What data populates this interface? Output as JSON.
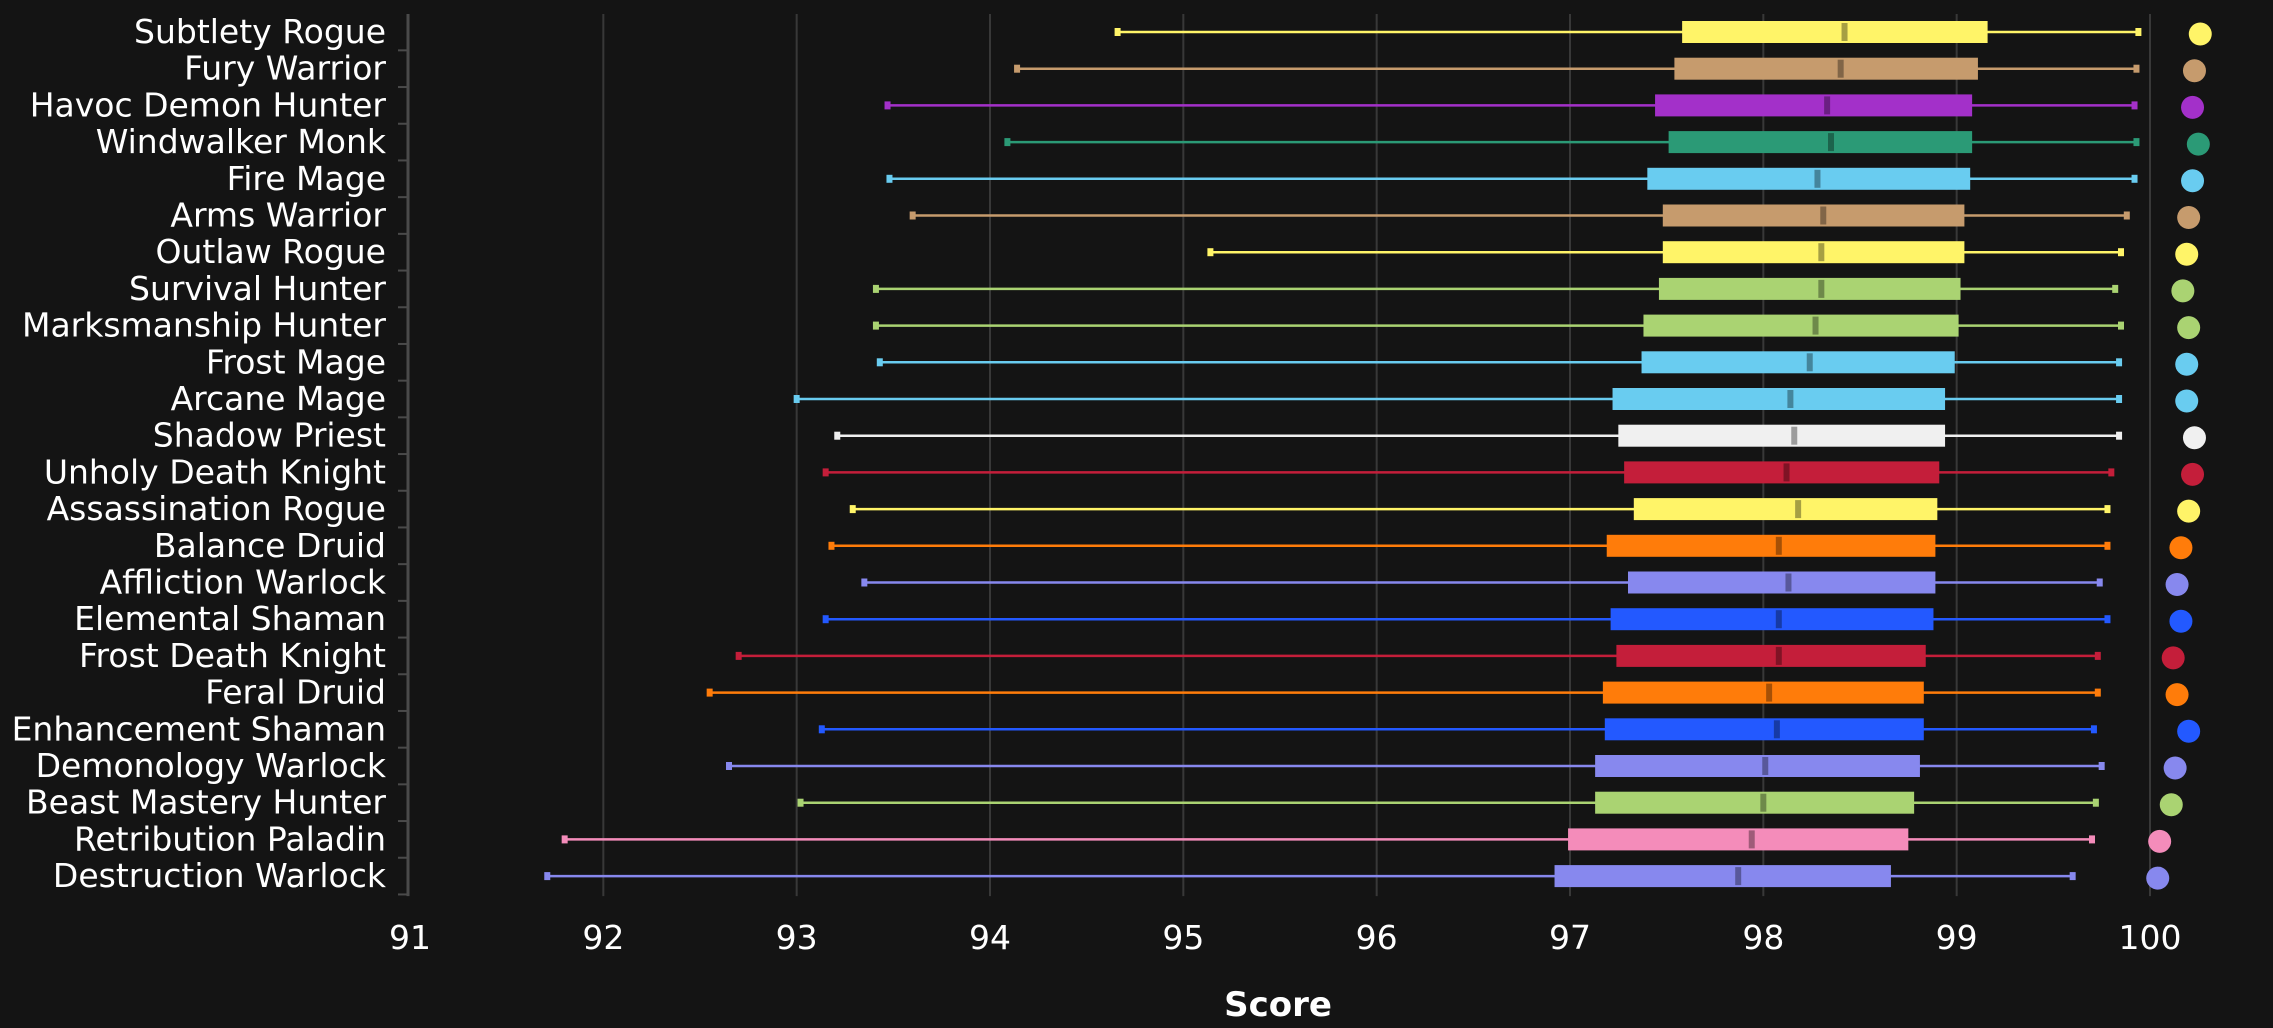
{
  "chart_data": {
    "type": "boxplot",
    "orientation": "horizontal",
    "title": "",
    "xlabel": "Score",
    "ylabel": "",
    "xlim": [
      91,
      100
    ],
    "x_ticks": [
      "91",
      "92",
      "93",
      "94",
      "95",
      "96",
      "97",
      "98",
      "99",
      "100"
    ],
    "grid": "vertical",
    "legend": "none",
    "series": [
      {
        "category": "Subtlety Rogue",
        "color": "#fff468",
        "min": 94.66,
        "q1": 97.58,
        "median": 98.42,
        "q3": 99.16,
        "max": 99.94,
        "point": 100.26
      },
      {
        "category": "Fury Warrior",
        "color": "#c69b6d",
        "min": 94.14,
        "q1": 97.54,
        "median": 98.4,
        "q3": 99.11,
        "max": 99.93,
        "point": 100.23
      },
      {
        "category": "Havoc Demon Hunter",
        "color": "#a330c9",
        "min": 93.47,
        "q1": 97.44,
        "median": 98.33,
        "q3": 99.08,
        "max": 99.92,
        "point": 100.22
      },
      {
        "category": "Windwalker Monk",
        "color": "#2b9a76",
        "min": 94.09,
        "q1": 97.51,
        "median": 98.35,
        "q3": 99.08,
        "max": 99.93,
        "point": 100.25
      },
      {
        "category": "Fire Mage",
        "color": "#69ccf0",
        "min": 93.48,
        "q1": 97.4,
        "median": 98.28,
        "q3": 99.07,
        "max": 99.92,
        "point": 100.22
      },
      {
        "category": "Arms Warrior",
        "color": "#c69b6d",
        "min": 93.6,
        "q1": 97.48,
        "median": 98.31,
        "q3": 99.04,
        "max": 99.88,
        "point": 100.2
      },
      {
        "category": "Outlaw Rogue",
        "color": "#fff468",
        "min": 95.14,
        "q1": 97.48,
        "median": 98.3,
        "q3": 99.04,
        "max": 99.85,
        "point": 100.19
      },
      {
        "category": "Survival Hunter",
        "color": "#aad372",
        "min": 93.41,
        "q1": 97.46,
        "median": 98.3,
        "q3": 99.02,
        "max": 99.82,
        "point": 100.17
      },
      {
        "category": "Marksmanship Hunter",
        "color": "#aad372",
        "min": 93.41,
        "q1": 97.38,
        "median": 98.27,
        "q3": 99.01,
        "max": 99.85,
        "point": 100.2
      },
      {
        "category": "Frost Mage",
        "color": "#69ccf0",
        "min": 93.43,
        "q1": 97.37,
        "median": 98.24,
        "q3": 98.99,
        "max": 99.84,
        "point": 100.19
      },
      {
        "category": "Arcane Mage",
        "color": "#69ccf0",
        "min": 93.0,
        "q1": 97.22,
        "median": 98.14,
        "q3": 98.94,
        "max": 99.84,
        "point": 100.19
      },
      {
        "category": "Shadow Priest",
        "color": "#f0f0f0",
        "min": 93.21,
        "q1": 97.25,
        "median": 98.16,
        "q3": 98.94,
        "max": 99.84,
        "point": 100.23
      },
      {
        "category": "Unholy Death Knight",
        "color": "#c41e3a",
        "min": 93.15,
        "q1": 97.28,
        "median": 98.12,
        "q3": 98.91,
        "max": 99.8,
        "point": 100.22
      },
      {
        "category": "Assassination Rogue",
        "color": "#fff468",
        "min": 93.29,
        "q1": 97.33,
        "median": 98.18,
        "q3": 98.9,
        "max": 99.78,
        "point": 100.2
      },
      {
        "category": "Balance Druid",
        "color": "#ff7c0a",
        "min": 93.18,
        "q1": 97.19,
        "median": 98.08,
        "q3": 98.89,
        "max": 99.78,
        "point": 100.16
      },
      {
        "category": "Affliction Warlock",
        "color": "#8788ee",
        "min": 93.35,
        "q1": 97.3,
        "median": 98.13,
        "q3": 98.89,
        "max": 99.74,
        "point": 100.14
      },
      {
        "category": "Elemental Shaman",
        "color": "#2359ff",
        "min": 93.15,
        "q1": 97.21,
        "median": 98.08,
        "q3": 98.88,
        "max": 99.78,
        "point": 100.16
      },
      {
        "category": "Frost Death Knight",
        "color": "#c41e3a",
        "min": 92.7,
        "q1": 97.24,
        "median": 98.08,
        "q3": 98.84,
        "max": 99.73,
        "point": 100.12
      },
      {
        "category": "Feral Druid",
        "color": "#ff7c0a",
        "min": 92.55,
        "q1": 97.17,
        "median": 98.03,
        "q3": 98.83,
        "max": 99.73,
        "point": 100.14
      },
      {
        "category": "Enhancement Shaman",
        "color": "#2359ff",
        "min": 93.13,
        "q1": 97.18,
        "median": 98.07,
        "q3": 98.83,
        "max": 99.71,
        "point": 100.2
      },
      {
        "category": "Demonology Warlock",
        "color": "#8788ee",
        "min": 92.65,
        "q1": 97.13,
        "median": 98.01,
        "q3": 98.81,
        "max": 99.75,
        "point": 100.13
      },
      {
        "category": "Beast Mastery Hunter",
        "color": "#aad372",
        "min": 93.02,
        "q1": 97.13,
        "median": 98.0,
        "q3": 98.78,
        "max": 99.72,
        "point": 100.11
      },
      {
        "category": "Retribution Paladin",
        "color": "#f48cba",
        "min": 91.8,
        "q1": 96.99,
        "median": 97.94,
        "q3": 98.75,
        "max": 99.7,
        "point": 100.05
      },
      {
        "category": "Destruction Warlock",
        "color": "#8788ee",
        "min": 91.71,
        "q1": 96.92,
        "median": 97.87,
        "q3": 98.66,
        "max": 99.6,
        "point": 100.04
      }
    ]
  }
}
